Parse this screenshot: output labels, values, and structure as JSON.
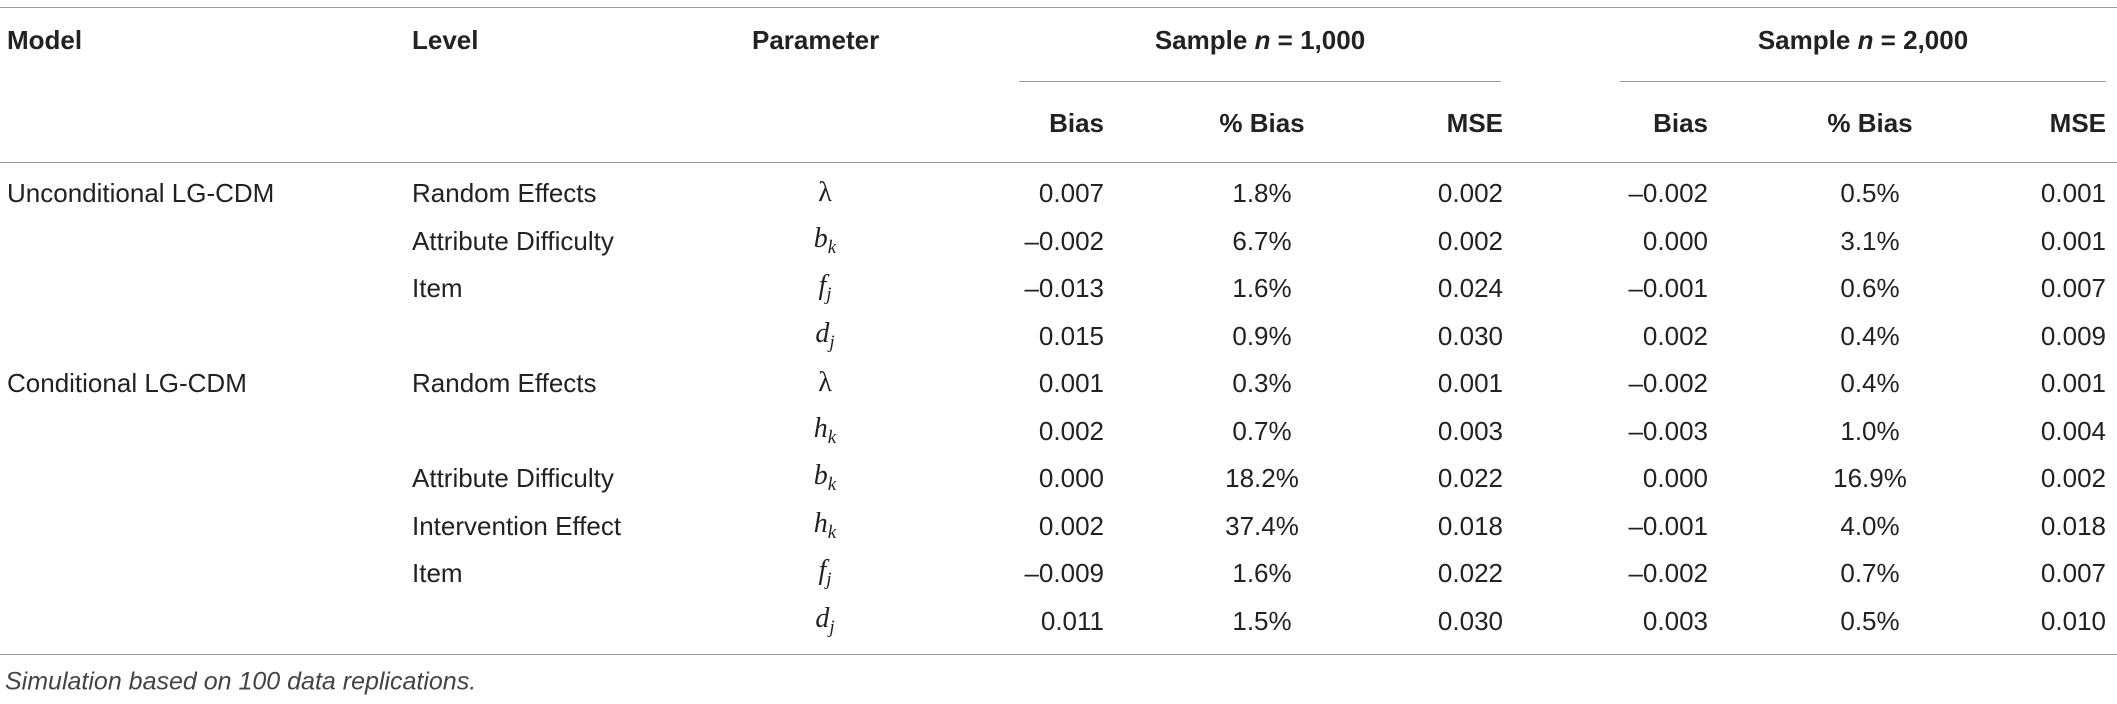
{
  "table": {
    "headers": [
      "Model",
      "Level",
      "Parameter"
    ],
    "groups": [
      {
        "prefix": "Sample ",
        "var": "n",
        "suffix": " = 1,000"
      },
      {
        "prefix": "Sample ",
        "var": "n",
        "suffix": " = 2,000"
      }
    ],
    "subheaders": [
      "Bias",
      "% Bias",
      "MSE",
      "Bias",
      "% Bias",
      "MSE"
    ],
    "rows": [
      {
        "model": "Unconditional LG-CDM",
        "level": "Random Effects",
        "parameter": {
          "symbol": "λ"
        },
        "values": [
          "0.007",
          "1.8%",
          "0.002",
          "–0.002",
          "0.5%",
          "0.001"
        ]
      },
      {
        "model": null,
        "level": "Attribute Difficulty",
        "parameter": {
          "symbol": "b",
          "sub": "k"
        },
        "values": [
          "–0.002",
          "6.7%",
          "0.002",
          "0.000",
          "3.1%",
          "0.001"
        ]
      },
      {
        "model": null,
        "level": "Item",
        "parameter": {
          "symbol": "f",
          "sub": "j"
        },
        "values": [
          "–0.013",
          "1.6%",
          "0.024",
          "–0.001",
          "0.6%",
          "0.007"
        ]
      },
      {
        "model": null,
        "level": null,
        "parameter": {
          "symbol": "d",
          "sub": "j"
        },
        "values": [
          "0.015",
          "0.9%",
          "0.030",
          "0.002",
          "0.4%",
          "0.009"
        ]
      },
      {
        "model": "Conditional LG-CDM",
        "level": "Random Effects",
        "parameter": {
          "symbol": "λ"
        },
        "values": [
          "0.001",
          "0.3%",
          "0.001",
          "–0.002",
          "0.4%",
          "0.001"
        ]
      },
      {
        "model": null,
        "level": null,
        "parameter": {
          "symbol": "h",
          "sub": "k"
        },
        "values": [
          "0.002",
          "0.7%",
          "0.003",
          "–0.003",
          "1.0%",
          "0.004"
        ]
      },
      {
        "model": null,
        "level": "Attribute Difficulty",
        "parameter": {
          "symbol": "b",
          "sub": "k"
        },
        "values": [
          "0.000",
          "18.2%",
          "0.022",
          "0.000",
          "16.9%",
          "0.002"
        ]
      },
      {
        "model": null,
        "level": "Intervention Effect",
        "parameter": {
          "symbol": "h",
          "sub": "k"
        },
        "values": [
          "0.002",
          "37.4%",
          "0.018",
          "–0.001",
          "4.0%",
          "0.018"
        ]
      },
      {
        "model": null,
        "level": "Item",
        "parameter": {
          "symbol": "f",
          "sub": "j"
        },
        "values": [
          "–0.009",
          "1.6%",
          "0.022",
          "–0.002",
          "0.7%",
          "0.007"
        ]
      },
      {
        "model": null,
        "level": null,
        "parameter": {
          "symbol": "d",
          "sub": "j"
        },
        "values": [
          "0.011",
          "1.5%",
          "0.030",
          "0.003",
          "0.5%",
          "0.010"
        ]
      }
    ],
    "footnote": "Simulation based on 100 data replications."
  }
}
